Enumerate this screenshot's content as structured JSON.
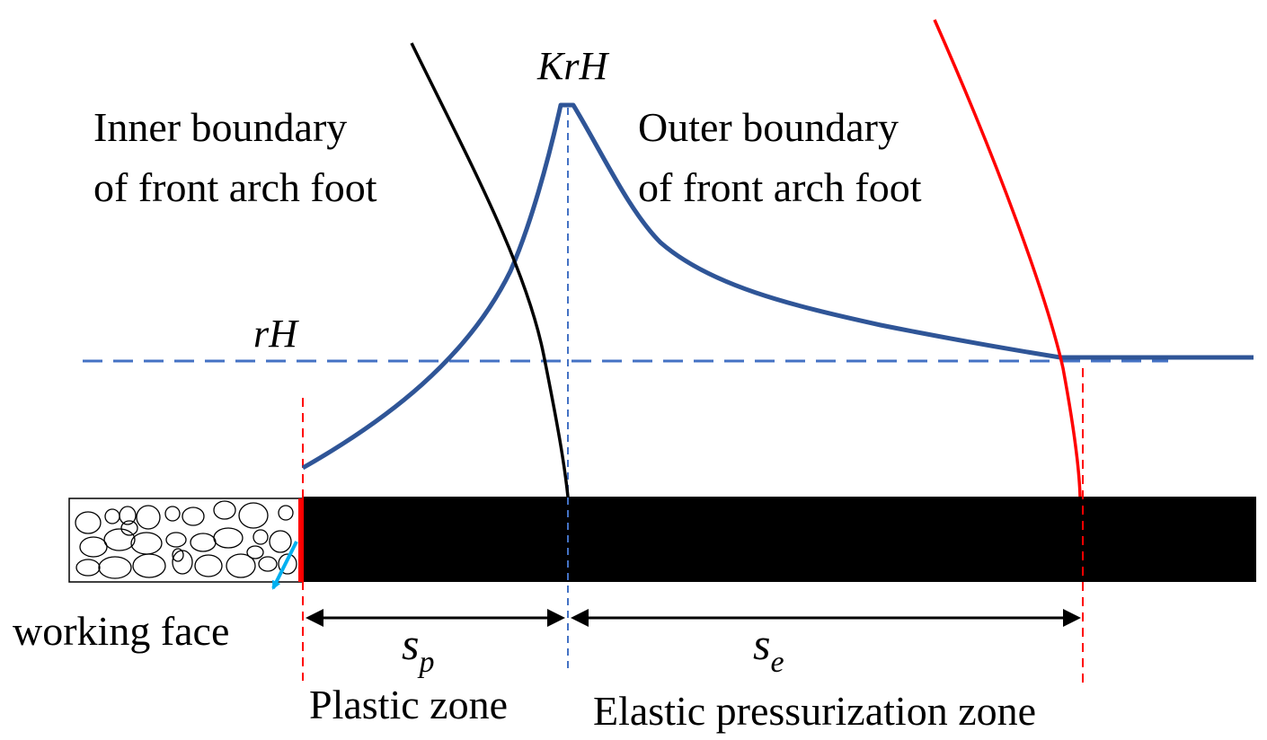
{
  "labels": {
    "peak_stress": "KrH",
    "original_stress": "rH",
    "inner_boundary_line1": "Inner boundary",
    "inner_boundary_line2": "of front arch foot",
    "outer_boundary_line1": "Outer boundary",
    "outer_boundary_line2": "of front arch foot",
    "working_face": "working face",
    "plastic_width_symbol": "s",
    "plastic_width_subscript": "p",
    "elastic_width_symbol": "s",
    "elastic_width_subscript": "e",
    "plastic_zone": "Plastic zone",
    "elastic_zone": "Elastic pressurization zone"
  },
  "colors": {
    "stress_curve": "#2f5597",
    "reference_dash": "#4472c4",
    "inner_boundary": "#000000",
    "outer_boundary": "#ff0000",
    "zone_divider": "#ff0000",
    "working_face_edge": "#ff0000",
    "working_face_arrow": "#00b0f0",
    "coal_seam": "#000000",
    "dimension_arrow": "#000000"
  },
  "icons": {
    "goaf": "rubble-ellipses",
    "working_face_pointer": "arrow-down-left"
  }
}
